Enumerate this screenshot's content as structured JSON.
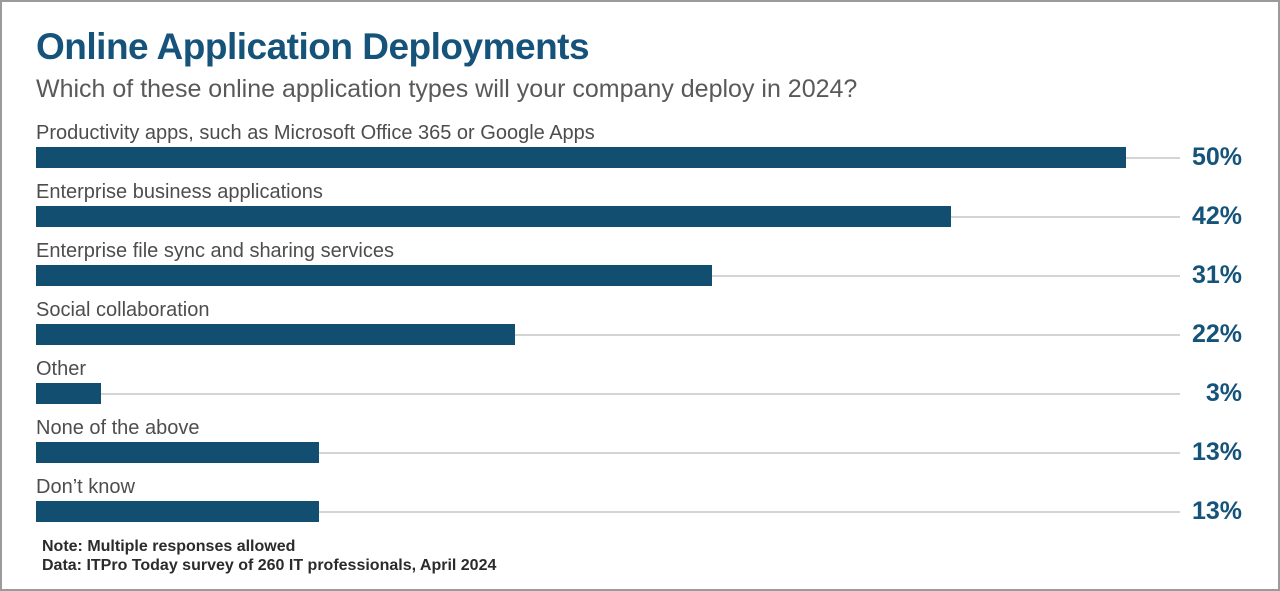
{
  "title": "Online Application Deployments",
  "subtitle": "Which of these online application types will your company deploy in 2024?",
  "notes": {
    "note": "Note: Multiple responses allowed",
    "source": "Data: ITPro Today survey of 260 IT professionals, April 2024"
  },
  "colors": {
    "bar": "#124e70",
    "title_text": "#15537b",
    "value_label": "#15537b",
    "category_label": "#4d4d4d",
    "track_line": "#d4d4d4",
    "frame_border": "#9b9b9b"
  },
  "chart_data": {
    "type": "bar",
    "orientation": "horizontal",
    "title": "Online Application Deployments",
    "subtitle": "Which of these online application types will your company deploy in 2024?",
    "categories": [
      "Productivity apps, such as Microsoft Office 365 or Google Apps",
      "Enterprise business applications",
      "Enterprise file sync and sharing services",
      "Social collaboration",
      "Other",
      "None of the above",
      "Don’t know"
    ],
    "values": [
      50,
      42,
      31,
      22,
      3,
      13,
      13
    ],
    "value_labels": [
      "50%",
      "42%",
      "31%",
      "22%",
      "3%",
      "13%",
      "13%"
    ],
    "value_suffix": "%",
    "xlabel": "",
    "ylabel": "",
    "xlim": [
      0,
      52.5
    ],
    "grid": false,
    "legend": false
  }
}
